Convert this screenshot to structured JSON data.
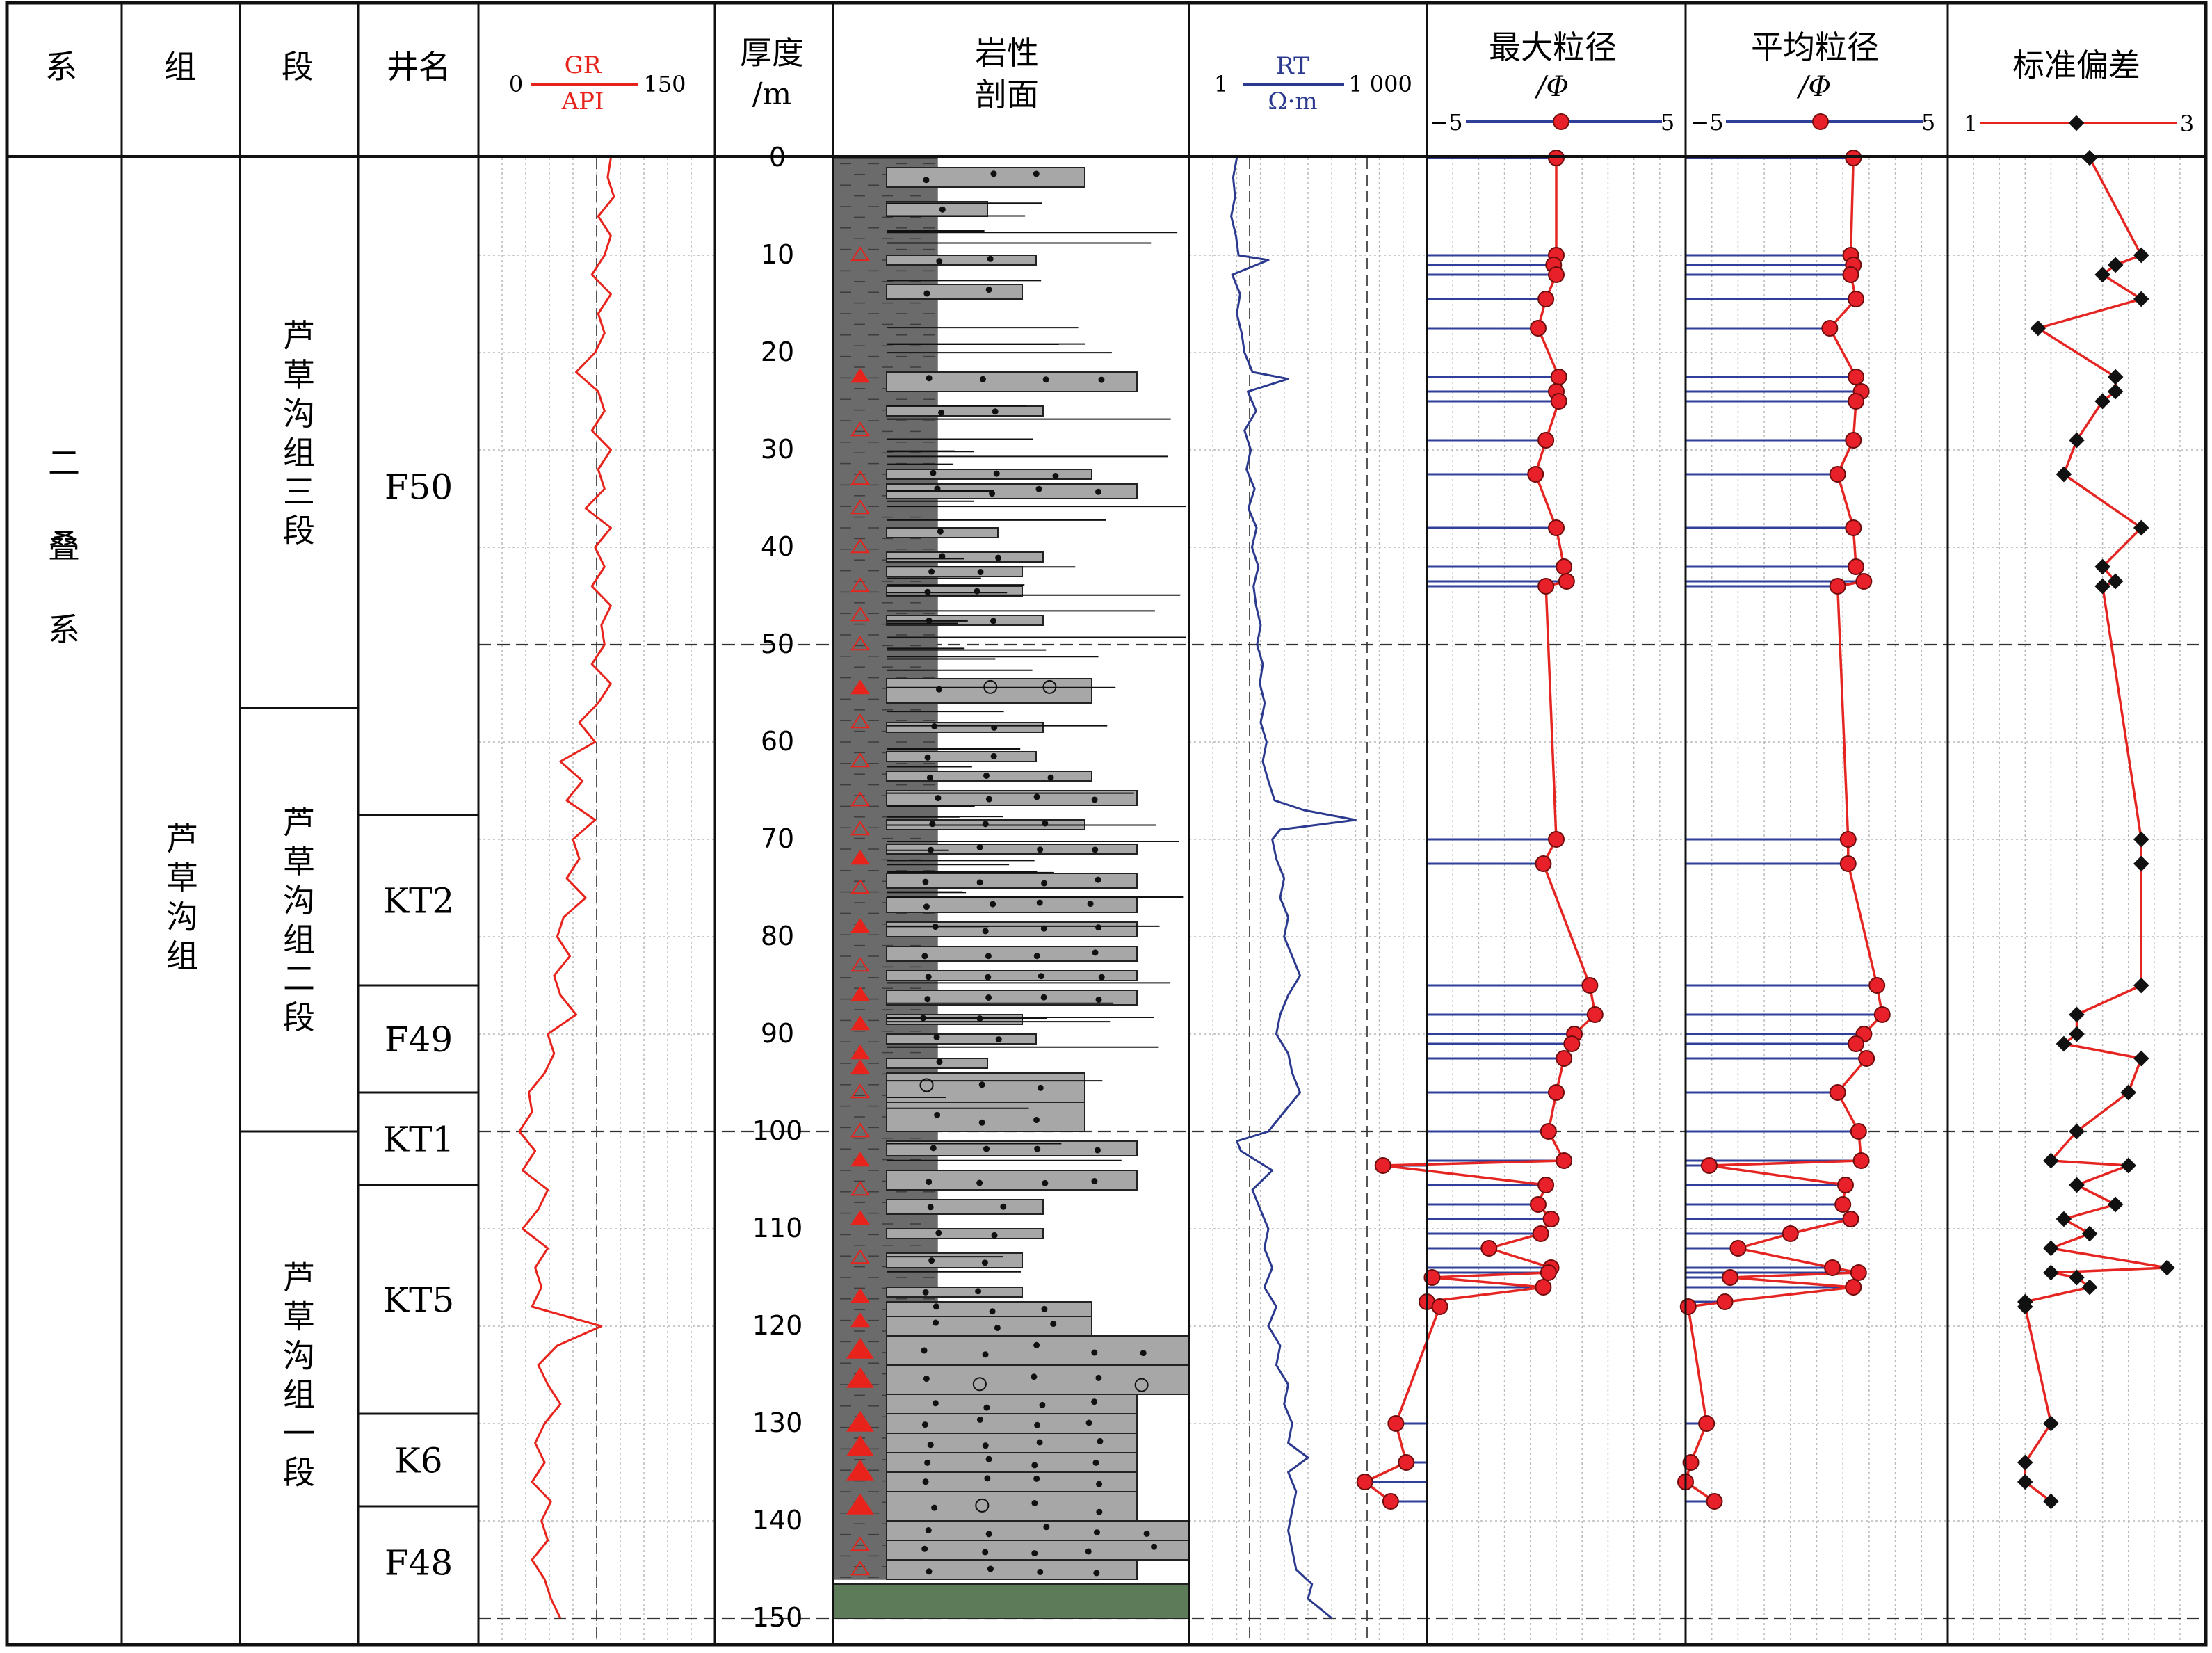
{
  "headers": {
    "system": "系",
    "formation": "组",
    "member": "段",
    "well": "井名",
    "gr": {
      "label": "GR",
      "unit": "API",
      "min": "0",
      "max": "150"
    },
    "thickness": {
      "line1": "厚度",
      "line2": "/m"
    },
    "lithology": {
      "line1": "岩性",
      "line2": "剖面"
    },
    "rt": {
      "label": "RT",
      "unit": "Ω·m",
      "min": "1",
      "max": "1 000"
    },
    "max_grain": {
      "line1": "最大粒径",
      "line2": "/Φ",
      "min": "−5",
      "max": "5"
    },
    "mean_grain": {
      "line1": "平均粒径",
      "line2": "/Φ",
      "min": "−5",
      "max": "5"
    },
    "std_dev": {
      "line1": "标准偏差",
      "min": "1",
      "max": "3"
    }
  },
  "system_name": [
    "二",
    "叠",
    "系"
  ],
  "formation_name": [
    "芦",
    "草",
    "沟",
    "组"
  ],
  "members": [
    {
      "chars": [
        "芦",
        "草",
        "沟",
        "组",
        "三",
        "段"
      ],
      "top": 0,
      "bottom": 56.5
    },
    {
      "chars": [
        "芦",
        "草",
        "沟",
        "组",
        "二",
        "段"
      ],
      "top": 56.5,
      "bottom": 100
    },
    {
      "chars": [
        "芦",
        "草",
        "沟",
        "组",
        "一",
        "段"
      ],
      "top": 100,
      "bottom": 150
    }
  ],
  "wells": [
    {
      "name": "F50",
      "top": 0,
      "bottom": 67.5
    },
    {
      "name": "KT2",
      "top": 67.5,
      "bottom": 85
    },
    {
      "name": "F49",
      "top": 85,
      "bottom": 96
    },
    {
      "name": "KT1",
      "top": 96,
      "bottom": 105.5
    },
    {
      "name": "KT5",
      "top": 105.5,
      "bottom": 129
    },
    {
      "name": "K6",
      "top": 129,
      "bottom": 138.5
    },
    {
      "name": "F48",
      "top": 138.5,
      "bottom": 150
    }
  ],
  "depth_ticks": [
    "0",
    "10",
    "20",
    "30",
    "40",
    "50",
    "60",
    "70",
    "80",
    "90",
    "100",
    "110",
    "120",
    "130",
    "140",
    "150"
  ],
  "boundary_depths": [
    50,
    100,
    150
  ],
  "colors": {
    "gr": "#e8231c",
    "rt": "#2b3a8f",
    "stem": "#2f3f9a",
    "grain_line": "#e52521",
    "point_fill": "#e8202a",
    "std_point": "#111111",
    "mudstone": "#6b6b6b",
    "sandstone": "#a7a7a7",
    "green_bed": "#5d7a59",
    "triangle": "#e8231c"
  },
  "chart_data": {
    "type": "line",
    "y_axis": {
      "label": "厚度/m",
      "range": [
        0,
        150
      ],
      "inverted": true
    },
    "series": [
      {
        "name": "GR",
        "unit": "API",
        "xlim": [
          0,
          150
        ],
        "scale": "linear",
        "points": [
          [
            0,
            84
          ],
          [
            2,
            82
          ],
          [
            4,
            86
          ],
          [
            6,
            76
          ],
          [
            8,
            84
          ],
          [
            10,
            80
          ],
          [
            12,
            72
          ],
          [
            14,
            84
          ],
          [
            16,
            76
          ],
          [
            18,
            80
          ],
          [
            20,
            74
          ],
          [
            22,
            62
          ],
          [
            24,
            76
          ],
          [
            26,
            80
          ],
          [
            28,
            72
          ],
          [
            30,
            84
          ],
          [
            32,
            76
          ],
          [
            34,
            80
          ],
          [
            36,
            68
          ],
          [
            38,
            84
          ],
          [
            40,
            74
          ],
          [
            42,
            80
          ],
          [
            44,
            72
          ],
          [
            46,
            84
          ],
          [
            48,
            78
          ],
          [
            50,
            80
          ],
          [
            52,
            72
          ],
          [
            54,
            84
          ],
          [
            56,
            76
          ],
          [
            58,
            64
          ],
          [
            60,
            74
          ],
          [
            62,
            52
          ],
          [
            64,
            66
          ],
          [
            66,
            56
          ],
          [
            68,
            74
          ],
          [
            70,
            60
          ],
          [
            72,
            64
          ],
          [
            74,
            56
          ],
          [
            76,
            68
          ],
          [
            78,
            54
          ],
          [
            80,
            50
          ],
          [
            82,
            58
          ],
          [
            84,
            48
          ],
          [
            86,
            52
          ],
          [
            88,
            62
          ],
          [
            90,
            44
          ],
          [
            92,
            48
          ],
          [
            94,
            42
          ],
          [
            96,
            32
          ],
          [
            98,
            34
          ],
          [
            100,
            26
          ],
          [
            102,
            36
          ],
          [
            104,
            28
          ],
          [
            106,
            44
          ],
          [
            108,
            38
          ],
          [
            110,
            28
          ],
          [
            112,
            44
          ],
          [
            114,
            36
          ],
          [
            116,
            40
          ],
          [
            118,
            34
          ],
          [
            120,
            78
          ],
          [
            122,
            50
          ],
          [
            124,
            38
          ],
          [
            126,
            44
          ],
          [
            128,
            52
          ],
          [
            130,
            42
          ],
          [
            132,
            36
          ],
          [
            134,
            42
          ],
          [
            136,
            34
          ],
          [
            138,
            46
          ],
          [
            140,
            40
          ],
          [
            142,
            44
          ],
          [
            144,
            34
          ],
          [
            146,
            42
          ],
          [
            148,
            46
          ],
          [
            150,
            52
          ]
        ]
      },
      {
        "name": "RT",
        "unit": "Ω·m",
        "xlim": [
          1,
          1000
        ],
        "scale": "log",
        "points": [
          [
            0,
            4.0
          ],
          [
            2,
            3.6
          ],
          [
            4,
            3.8
          ],
          [
            6,
            3.4
          ],
          [
            8,
            3.9
          ],
          [
            10,
            4.2
          ],
          [
            10.5,
            10.0
          ],
          [
            12,
            3.5
          ],
          [
            14,
            4.4
          ],
          [
            16,
            4.0
          ],
          [
            18,
            4.6
          ],
          [
            20,
            5.0
          ],
          [
            22,
            6.3
          ],
          [
            22.7,
            17.8
          ],
          [
            24,
            5.5
          ],
          [
            26,
            7.0
          ],
          [
            28,
            5.0
          ],
          [
            30,
            6.0
          ],
          [
            32,
            5.3
          ],
          [
            34,
            6.7
          ],
          [
            36,
            5.6
          ],
          [
            38,
            7.1
          ],
          [
            40,
            6.2
          ],
          [
            42,
            7.5
          ],
          [
            44,
            6.5
          ],
          [
            46,
            7.0
          ],
          [
            48,
            8.0
          ],
          [
            50,
            7.2
          ],
          [
            52,
            8.5
          ],
          [
            54,
            7.8
          ],
          [
            56,
            9.0
          ],
          [
            58,
            8.0
          ],
          [
            60,
            9.5
          ],
          [
            62,
            8.5
          ],
          [
            64,
            10.0
          ],
          [
            66,
            12.0
          ],
          [
            67,
            28.2
          ],
          [
            68,
            125.9
          ],
          [
            69,
            14.1
          ],
          [
            70,
            11.2
          ],
          [
            72,
            12.6
          ],
          [
            74,
            15.8
          ],
          [
            76,
            14.1
          ],
          [
            78,
            17.8
          ],
          [
            80,
            15.8
          ],
          [
            82,
            20.0
          ],
          [
            84,
            25.1
          ],
          [
            86,
            17.8
          ],
          [
            88,
            14.1
          ],
          [
            90,
            12.6
          ],
          [
            92,
            17.8
          ],
          [
            94,
            20.0
          ],
          [
            96,
            25.1
          ],
          [
            98,
            15.8
          ],
          [
            100,
            10.0
          ],
          [
            101,
            4.0
          ],
          [
            102,
            4.5
          ],
          [
            104,
            11.2
          ],
          [
            106,
            6.3
          ],
          [
            108,
            7.9
          ],
          [
            110,
            10.0
          ],
          [
            112,
            8.9
          ],
          [
            114,
            11.2
          ],
          [
            116,
            8.9
          ],
          [
            118,
            12.6
          ],
          [
            120,
            10.0
          ],
          [
            122,
            14.1
          ],
          [
            124,
            12.6
          ],
          [
            126,
            17.8
          ],
          [
            128,
            15.8
          ],
          [
            130,
            20.0
          ],
          [
            132,
            17.8
          ],
          [
            133.5,
            31.6
          ],
          [
            135,
            17.8
          ],
          [
            137,
            22.4
          ],
          [
            139,
            19.9
          ],
          [
            141,
            17.8
          ],
          [
            143,
            20.0
          ],
          [
            145,
            22.4
          ],
          [
            146.5,
            35.5
          ],
          [
            148,
            31.6
          ],
          [
            150,
            63.1
          ]
        ]
      },
      {
        "name": "最大粒径",
        "unit": "Φ",
        "xlim": [
          -5,
          5
        ],
        "points": [
          [
            0,
            0.0
          ],
          [
            10,
            0.0
          ],
          [
            11,
            -0.1
          ],
          [
            12,
            0.0
          ],
          [
            14.5,
            -0.4
          ],
          [
            17.5,
            -0.7
          ],
          [
            22.5,
            0.1
          ],
          [
            24,
            0.0
          ],
          [
            25,
            0.1
          ],
          [
            29,
            -0.4
          ],
          [
            32.5,
            -0.8
          ],
          [
            38,
            0.0
          ],
          [
            42,
            0.3
          ],
          [
            43.5,
            0.4
          ],
          [
            44,
            -0.4
          ],
          [
            70,
            0.0
          ],
          [
            72.5,
            -0.5
          ],
          [
            85,
            1.3
          ],
          [
            88,
            1.5
          ],
          [
            90,
            0.7
          ],
          [
            91,
            0.6
          ],
          [
            92.5,
            0.3
          ],
          [
            96,
            0.0
          ],
          [
            100,
            -0.3
          ],
          [
            103,
            0.3
          ],
          [
            103.5,
            -6.7
          ],
          [
            105.5,
            -0.4
          ],
          [
            107.5,
            -0.7
          ],
          [
            109,
            -0.2
          ],
          [
            110.5,
            -0.6
          ],
          [
            112,
            -2.6
          ],
          [
            114,
            -0.2
          ],
          [
            114.5,
            -0.3
          ],
          [
            115,
            -4.8
          ],
          [
            116,
            -0.5
          ],
          [
            117.5,
            -5.0
          ],
          [
            118,
            -4.5
          ],
          [
            130,
            -6.2
          ],
          [
            134,
            -5.8
          ],
          [
            136,
            -7.4
          ],
          [
            138,
            -6.4
          ]
        ]
      },
      {
        "name": "平均粒径",
        "unit": "Φ",
        "xlim": [
          -5,
          5
        ],
        "points": [
          [
            0,
            1.4
          ],
          [
            10,
            1.3
          ],
          [
            11,
            1.4
          ],
          [
            12,
            1.3
          ],
          [
            14.5,
            1.5
          ],
          [
            17.5,
            0.5
          ],
          [
            22.5,
            1.5
          ],
          [
            24,
            1.7
          ],
          [
            25,
            1.5
          ],
          [
            29,
            1.4
          ],
          [
            32.5,
            0.8
          ],
          [
            38,
            1.4
          ],
          [
            42,
            1.5
          ],
          [
            43.5,
            1.8
          ],
          [
            44,
            0.8
          ],
          [
            70,
            1.2
          ],
          [
            72.5,
            1.2
          ],
          [
            85,
            2.3
          ],
          [
            88,
            2.5
          ],
          [
            90,
            1.8
          ],
          [
            91,
            1.5
          ],
          [
            92.5,
            1.9
          ],
          [
            96,
            0.8
          ],
          [
            100,
            1.6
          ],
          [
            103,
            1.7
          ],
          [
            103.5,
            -4.1
          ],
          [
            105.5,
            1.1
          ],
          [
            107.5,
            1.0
          ],
          [
            109,
            1.3
          ],
          [
            110.5,
            -1.0
          ],
          [
            112,
            -3.0
          ],
          [
            114,
            0.6
          ],
          [
            114.5,
            1.6
          ],
          [
            115,
            -3.3
          ],
          [
            116,
            1.4
          ],
          [
            117.5,
            -3.5
          ],
          [
            118,
            -4.9
          ],
          [
            130,
            -4.2
          ],
          [
            134,
            -4.8
          ],
          [
            136,
            -5.0
          ],
          [
            138,
            -3.9
          ]
        ]
      },
      {
        "name": "标准偏差",
        "xlim": [
          1,
          3
        ],
        "points": [
          [
            0,
            2.1
          ],
          [
            10,
            2.5
          ],
          [
            11,
            2.3
          ],
          [
            12,
            2.2
          ],
          [
            14.5,
            2.5
          ],
          [
            17.5,
            1.7
          ],
          [
            22.5,
            2.3
          ],
          [
            24,
            2.3
          ],
          [
            25,
            2.2
          ],
          [
            29,
            2.0
          ],
          [
            32.5,
            1.9
          ],
          [
            38,
            2.5
          ],
          [
            42,
            2.2
          ],
          [
            43.5,
            2.3
          ],
          [
            44,
            2.2
          ],
          [
            70,
            2.5
          ],
          [
            72.5,
            2.5
          ],
          [
            85,
            2.5
          ],
          [
            88,
            2.0
          ],
          [
            90,
            2.0
          ],
          [
            91,
            1.9
          ],
          [
            92.5,
            2.5
          ],
          [
            96,
            2.4
          ],
          [
            100,
            2.0
          ],
          [
            103,
            1.8
          ],
          [
            103.5,
            2.4
          ],
          [
            105.5,
            2.0
          ],
          [
            107.5,
            2.3
          ],
          [
            109,
            1.9
          ],
          [
            110.5,
            2.1
          ],
          [
            112,
            1.8
          ],
          [
            114,
            2.7
          ],
          [
            114.5,
            1.8
          ],
          [
            115,
            2.0
          ],
          [
            116,
            2.1
          ],
          [
            117.5,
            1.6
          ],
          [
            118,
            1.6
          ],
          [
            130,
            1.8
          ],
          [
            134,
            1.6
          ],
          [
            136,
            1.6
          ],
          [
            138,
            1.8
          ]
        ]
      }
    ]
  }
}
